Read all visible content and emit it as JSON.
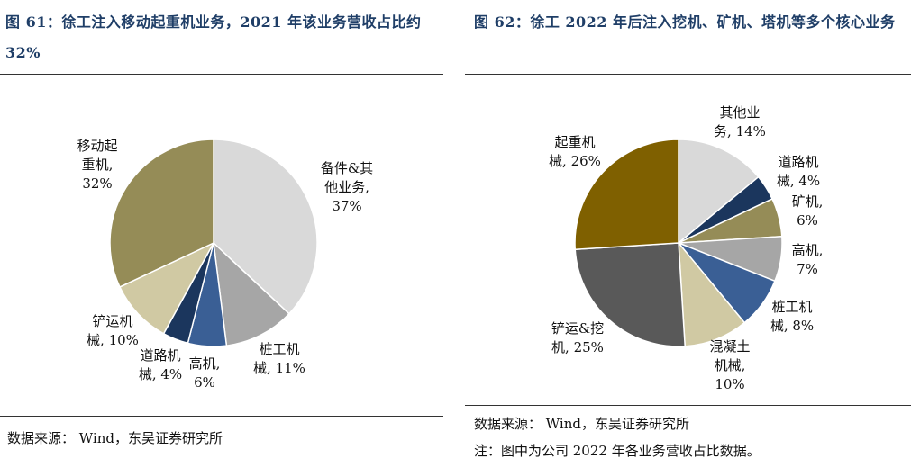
{
  "panels": [
    {
      "title": "图 61：徐工注入移动起重机业务，2021 年该业务营收占比约 32%",
      "source": "数据来源：  Wind，东吴证券研究所",
      "note": ""
    },
    {
      "title": "图 62：徐工 2022 年后注入挖机、矿机、塔机等多个核心业务",
      "source": "数据来源：  Wind，东吴证券研究所",
      "note": "注：图中为公司 2022 年各业务营收占比数据。"
    }
  ],
  "chart_data": [
    {
      "type": "pie",
      "title": "",
      "slices": [
        {
          "label": "备件&其他业务",
          "value": 37,
          "display": [
            "备件&其",
            "他业务,",
            "37%"
          ],
          "color": "#d9d9d9"
        },
        {
          "label": "桩工机械",
          "value": 11,
          "display": [
            "桩工机",
            "械, 11%"
          ],
          "color": "#a6a6a6"
        },
        {
          "label": "高机",
          "value": 6,
          "display": [
            "高机,",
            "6%"
          ],
          "color": "#3a5f95"
        },
        {
          "label": "道路机械",
          "value": 4,
          "display": [
            "道路机",
            "械, 4%"
          ],
          "color": "#1b365d"
        },
        {
          "label": "铲运机械",
          "value": 10,
          "display": [
            "铲运机",
            "械, 10%"
          ],
          "color": "#d0c9a3"
        },
        {
          "label": "移动起重机",
          "value": 32,
          "display": [
            "移动起",
            "重机,",
            "32%"
          ],
          "color": "#958c57"
        }
      ]
    },
    {
      "type": "pie",
      "title": "",
      "slices": [
        {
          "label": "其他业务",
          "value": 14,
          "display": [
            "其他业",
            "务, 14%"
          ],
          "color": "#d9d9d9"
        },
        {
          "label": "道路机械",
          "value": 4,
          "display": [
            "道路机",
            "械, 4%"
          ],
          "color": "#1b365d"
        },
        {
          "label": "矿机",
          "value": 6,
          "display": [
            "矿机,",
            "6%"
          ],
          "color": "#958c57"
        },
        {
          "label": "高机",
          "value": 7,
          "display": [
            "高机,",
            "7%"
          ],
          "color": "#a6a6a6"
        },
        {
          "label": "桩工机械",
          "value": 8,
          "display": [
            "桩工机",
            "械, 8%"
          ],
          "color": "#3a5f95"
        },
        {
          "label": "混凝土机械",
          "value": 10,
          "display": [
            "混凝土",
            "机械,",
            "10%"
          ],
          "color": "#d0c9a3"
        },
        {
          "label": "铲运&挖机",
          "value": 25,
          "display": [
            "铲运&挖",
            "机, 25%"
          ],
          "color": "#595959"
        },
        {
          "label": "起重机械",
          "value": 26,
          "display": [
            "起重机",
            "械, 26%"
          ],
          "color": "#7f6000"
        }
      ]
    }
  ]
}
